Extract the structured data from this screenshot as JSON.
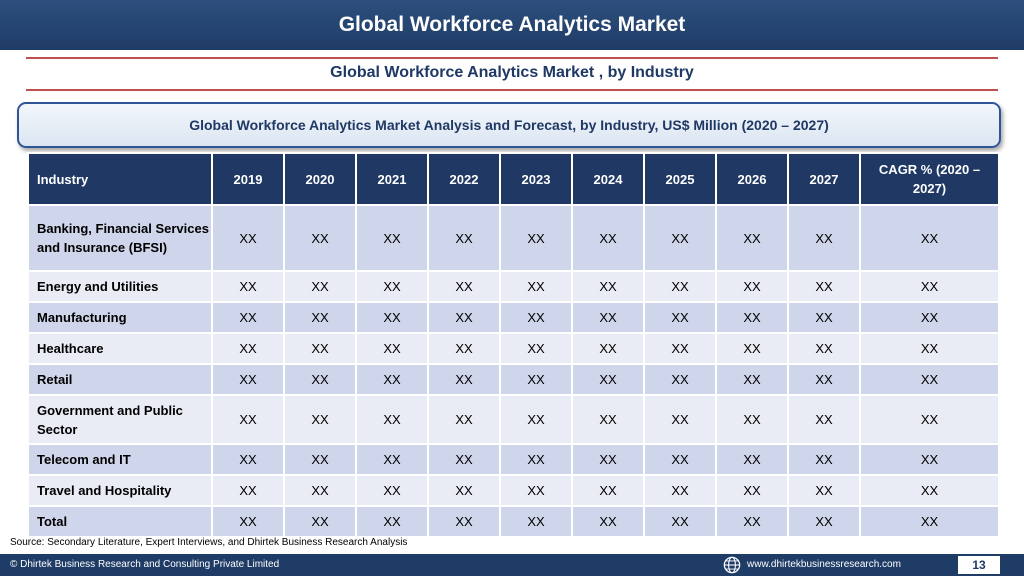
{
  "header": {
    "title": "Global Workforce Analytics Market"
  },
  "subtitle": "Global Workforce Analytics Market , by Industry",
  "banner": "Global Workforce Analytics Market  Analysis and Forecast, by Industry, US$ Million (2020 – 2027)",
  "table": {
    "columns": [
      "Industry",
      "2019",
      "2020",
      "2021",
      "2022",
      "2023",
      "2024",
      "2025",
      "2026",
      "2027",
      "CAGR % (2020 – 2027)"
    ],
    "rows": [
      {
        "industry": "Banking, Financial Services and Insurance (BFSI)",
        "values": [
          "XX",
          "XX",
          "XX",
          "XX",
          "XX",
          "XX",
          "XX",
          "XX",
          "XX",
          "XX"
        ]
      },
      {
        "industry": "Energy and Utilities",
        "values": [
          "XX",
          "XX",
          "XX",
          "XX",
          "XX",
          "XX",
          "XX",
          "XX",
          "XX",
          "XX"
        ]
      },
      {
        "industry": "Manufacturing",
        "values": [
          "XX",
          "XX",
          "XX",
          "XX",
          "XX",
          "XX",
          "XX",
          "XX",
          "XX",
          "XX"
        ]
      },
      {
        "industry": "Healthcare",
        "values": [
          "XX",
          "XX",
          "XX",
          "XX",
          "XX",
          "XX",
          "XX",
          "XX",
          "XX",
          "XX"
        ]
      },
      {
        "industry": "Retail",
        "values": [
          "XX",
          "XX",
          "XX",
          "XX",
          "XX",
          "XX",
          "XX",
          "XX",
          "XX",
          "XX"
        ]
      },
      {
        "industry": "Government and Public Sector",
        "values": [
          "XX",
          "XX",
          "XX",
          "XX",
          "XX",
          "XX",
          "XX",
          "XX",
          "XX",
          "XX"
        ]
      },
      {
        "industry": "Telecom and IT",
        "values": [
          "XX",
          "XX",
          "XX",
          "XX",
          "XX",
          "XX",
          "XX",
          "XX",
          "XX",
          "XX"
        ]
      },
      {
        "industry": "Travel and Hospitality",
        "values": [
          "XX",
          "XX",
          "XX",
          "XX",
          "XX",
          "XX",
          "XX",
          "XX",
          "XX",
          "XX"
        ]
      },
      {
        "industry": "Total",
        "values": [
          "XX",
          "XX",
          "XX",
          "XX",
          "XX",
          "XX",
          "XX",
          "XX",
          "XX",
          "XX"
        ]
      }
    ]
  },
  "source": "Source: Secondary Literature, Expert Interviews, and Dhirtek Business Research Analysis",
  "footer": {
    "copyright": "© Dhirtek Business Research and Consulting Private Limited",
    "website": "www.dhirtekbusinessresearch.com",
    "page_number": "13",
    "globe_icon": "globe-icon"
  },
  "colors": {
    "header_bg": "#1f3c66",
    "table_header": "#1f3864",
    "row_odd": "#cfd5ea",
    "row_even": "#e9ebf5",
    "accent_rule": "#c0504d"
  }
}
